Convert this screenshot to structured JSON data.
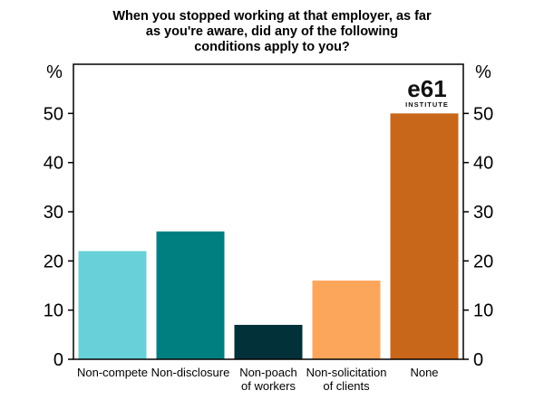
{
  "chart_data": {
    "type": "bar",
    "title_lines": [
      "When you stopped working at that employer, as far",
      "as you're aware, did any of the following",
      "conditions apply to you?"
    ],
    "y_unit_left": "%",
    "y_unit_right": "%",
    "ylim": [
      0,
      60
    ],
    "yticks": [
      0,
      10,
      20,
      30,
      40,
      50
    ],
    "grid": false,
    "legend": "none",
    "categories": [
      [
        "Non-compete"
      ],
      [
        "Non-disclosure"
      ],
      [
        "Non-poach",
        "of workers"
      ],
      [
        "Non-solicitation",
        "of clients"
      ],
      [
        "None"
      ]
    ],
    "values": [
      22,
      26,
      7,
      16,
      50
    ],
    "colors": [
      "#67d0d9",
      "#007f80",
      "#03313a",
      "#fca65c",
      "#c8671a"
    ],
    "logo": {
      "main": "e61",
      "sub": "INSTITUTE"
    }
  }
}
